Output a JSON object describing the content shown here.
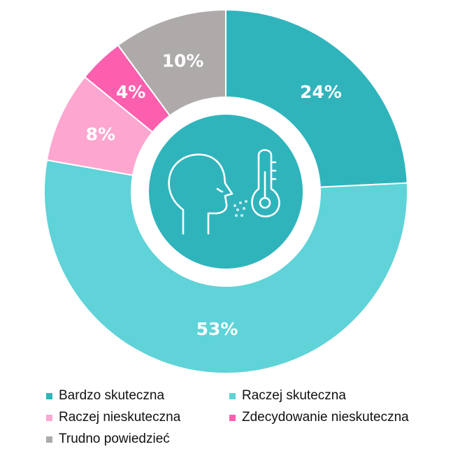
{
  "chart_data": {
    "type": "donut",
    "title": "",
    "categories": [
      "Bardzo skuteczna",
      "Raczej skuteczna",
      "Raczej nieskuteczna",
      "Zdecydowanie nieskuteczna",
      "Trudno powiedzieć"
    ],
    "values": [
      24,
      53,
      8,
      4,
      10
    ],
    "value_labels": [
      "24%",
      "53%",
      "8%",
      "4%",
      "10%"
    ],
    "unit": "%",
    "colors": [
      "#30b4bc",
      "#5fd3d8",
      "#fda6d0",
      "#fc5fad",
      "#aeaaaa"
    ],
    "start_angle_deg": 0,
    "direction": "clockwise",
    "legend_placement": "bottom",
    "center_icon": "head-breath-thermometer-icon",
    "center_color": "#30b4bc"
  }
}
